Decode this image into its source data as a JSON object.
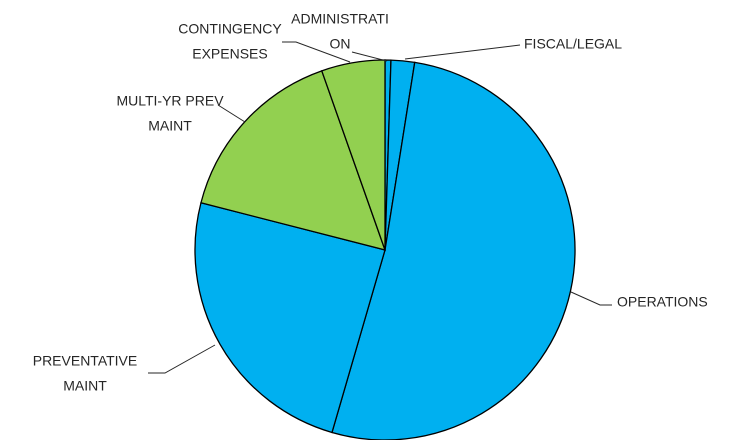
{
  "chart_data": {
    "type": "pie",
    "categories": [
      [
        "ADMINISTRATI",
        "ON"
      ],
      [
        "FISCAL/LEGAL"
      ],
      [
        "OPERATIONS"
      ],
      [
        "PREVENTATIVE",
        "MAINT"
      ],
      [
        "MULTI-YR PREV",
        "MAINT"
      ],
      [
        "CONTINGENCY",
        "EXPENSES"
      ]
    ],
    "values": [
      0.5,
      2,
      52,
      24.5,
      15.6,
      5.4
    ],
    "colors": [
      "#00b0f0",
      "#00b0f0",
      "#00b0f0",
      "#00b0f0",
      "#92d050",
      "#92d050"
    ]
  }
}
